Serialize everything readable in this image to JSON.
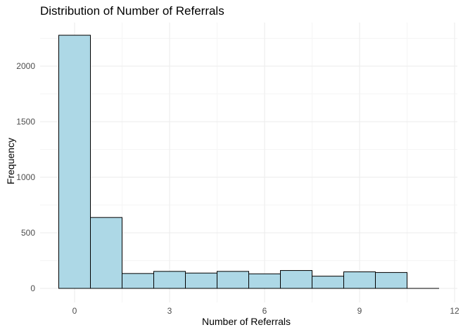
{
  "chart_data": {
    "type": "bar",
    "title": "Distribution of Number of Referrals",
    "xlabel": "Number of Referrals",
    "ylabel": "Frequency",
    "bin_width": 1,
    "x": [
      0,
      1,
      2,
      3,
      4,
      5,
      6,
      7,
      8,
      9,
      10,
      11
    ],
    "values": [
      2278,
      638,
      134,
      153,
      138,
      153,
      131,
      161,
      110,
      149,
      143,
      0
    ],
    "xlim": [
      -0.5,
      12
    ],
    "ylim": [
      0,
      2400
    ],
    "x_ticks": [
      0,
      3,
      6,
      9,
      12
    ],
    "y_ticks": [
      0,
      500,
      1000,
      1500,
      2000
    ],
    "grid": true,
    "legend": false,
    "colors": {
      "fill": "#add8e6",
      "stroke": "#000000",
      "grid_major": "#ebebeb",
      "grid_minor": "#f5f5f5"
    }
  }
}
